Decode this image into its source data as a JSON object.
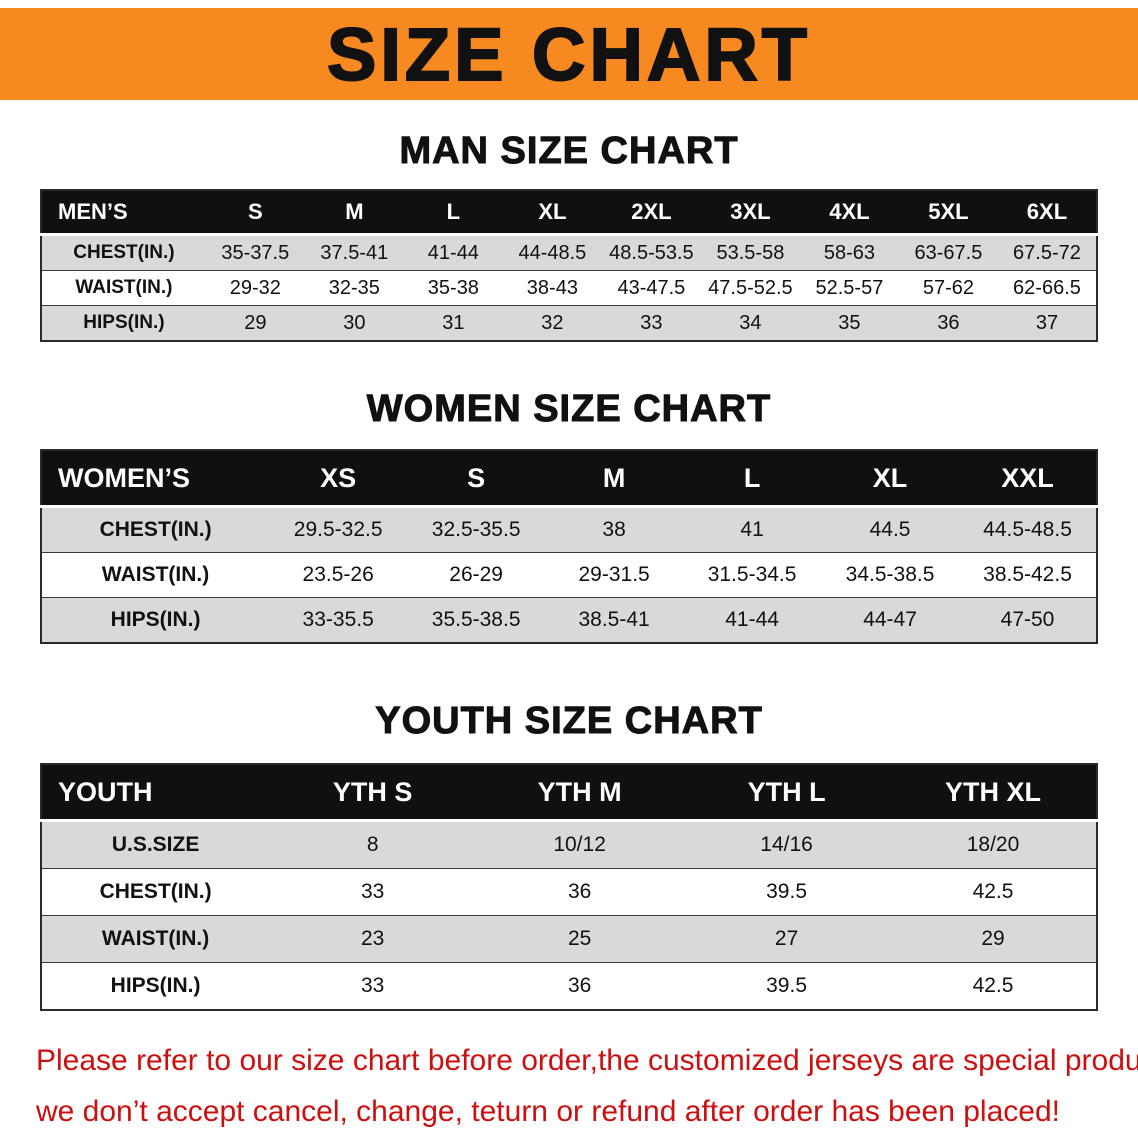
{
  "banner": {
    "title": "SIZE CHART"
  },
  "colors": {
    "banner_bg": "#f6891f",
    "banner_text": "#111111",
    "table_header_bg": "#101010",
    "table_header_text": "#ffffff",
    "row_shade": "#d9d9d9",
    "footer_text": "#cc0f0f"
  },
  "chart_data": [
    {
      "type": "table",
      "title": "MAN SIZE CHART",
      "corner_label": "MEN’S",
      "columns": [
        "S",
        "M",
        "L",
        "XL",
        "2XL",
        "3XL",
        "4XL",
        "5XL",
        "6XL"
      ],
      "rows": [
        {
          "label": "CHEST(IN.)",
          "values": [
            "35-37.5",
            "37.5-41",
            "41-44",
            "44-48.5",
            "48.5-53.5",
            "53.5-58",
            "58-63",
            "63-67.5",
            "67.5-72"
          ]
        },
        {
          "label": "WAIST(IN.)",
          "values": [
            "29-32",
            "32-35",
            "35-38",
            "38-43",
            "43-47.5",
            "47.5-52.5",
            "52.5-57",
            "57-62",
            "62-66.5"
          ]
        },
        {
          "label": "HIPS(IN.)",
          "values": [
            "29",
            "30",
            "31",
            "32",
            "33",
            "34",
            "35",
            "36",
            "37"
          ]
        }
      ]
    },
    {
      "type": "table",
      "title": "WOMEN SIZE CHART",
      "corner_label": "WOMEN’S",
      "columns": [
        "XS",
        "S",
        "M",
        "L",
        "XL",
        "XXL"
      ],
      "rows": [
        {
          "label": "CHEST(IN.)",
          "values": [
            "29.5-32.5",
            "32.5-35.5",
            "38",
            "41",
            "44.5",
            "44.5-48.5"
          ]
        },
        {
          "label": "WAIST(IN.)",
          "values": [
            "23.5-26",
            "26-29",
            "29-31.5",
            "31.5-34.5",
            "34.5-38.5",
            "38.5-42.5"
          ]
        },
        {
          "label": "HIPS(IN.)",
          "values": [
            "33-35.5",
            "35.5-38.5",
            "38.5-41",
            "41-44",
            "44-47",
            "47-50"
          ]
        }
      ]
    },
    {
      "type": "table",
      "title": "YOUTH SIZE CHART",
      "corner_label": "YOUTH",
      "columns": [
        "YTH S",
        "YTH M",
        "YTH L",
        "YTH XL"
      ],
      "rows": [
        {
          "label": "U.S.SIZE",
          "values": [
            "8",
            "10/12",
            "14/16",
            "18/20"
          ]
        },
        {
          "label": "CHEST(IN.)",
          "values": [
            "33",
            "36",
            "39.5",
            "42.5"
          ]
        },
        {
          "label": "WAIST(IN.)",
          "values": [
            "23",
            "25",
            "27",
            "29"
          ]
        },
        {
          "label": "HIPS(IN.)",
          "values": [
            "33",
            "36",
            "39.5",
            "42.5"
          ]
        }
      ]
    }
  ],
  "footer": {
    "line1": "Please refer to our size chart before order,the customized jerseys are special products,",
    "line2": "we don’t accept cancel, change, teturn or refund after order has been placed!"
  }
}
